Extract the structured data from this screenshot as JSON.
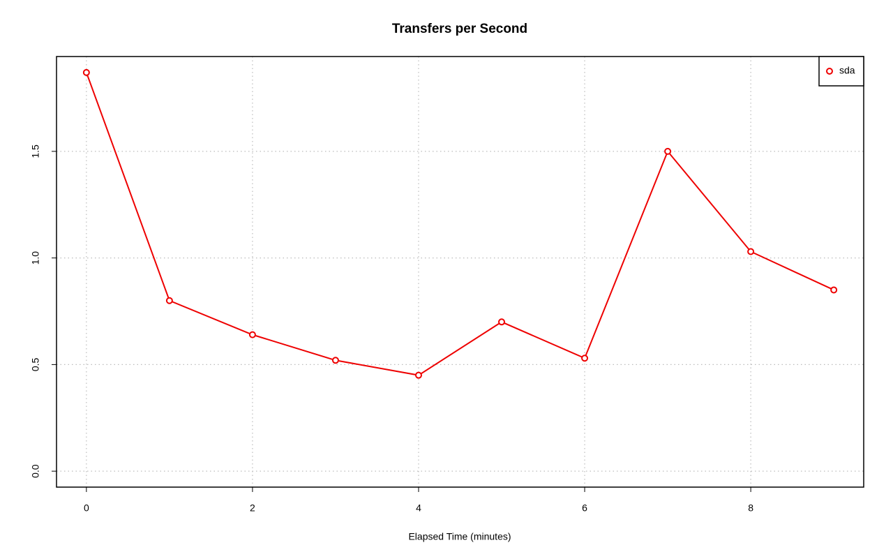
{
  "chart_data": {
    "type": "line",
    "title": "Transfers per Second",
    "x_label": "Elapsed Time (minutes)",
    "x": [
      0,
      1,
      2,
      3,
      4,
      5,
      6,
      7,
      8,
      9
    ],
    "series": [
      {
        "name": "sda",
        "color": "#ee0000",
        "values": [
          1.87,
          0.8,
          0.64,
          0.52,
          0.45,
          0.7,
          0.53,
          1.5,
          1.03,
          0.85
        ]
      }
    ],
    "xlim": [
      -0.36,
      9.36
    ],
    "xticks": [
      0,
      2,
      4,
      6,
      8
    ],
    "ylim": [
      -0.0748,
      1.9448
    ],
    "yticks": [
      {
        "value": 0,
        "label": "0.0"
      },
      0.5,
      {
        "value": 1,
        "label": "1.0"
      },
      1.5
    ],
    "grid": true,
    "legend": "top-right"
  }
}
